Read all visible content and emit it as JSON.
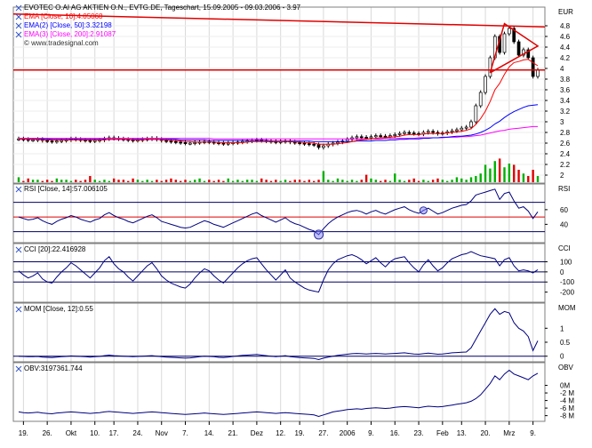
{
  "chart_data": {
    "type": "line",
    "x_tick_labels": [
      "19.",
      "26.",
      "Okt",
      "10.",
      "17.",
      "24.",
      "Nov",
      "7.",
      "14.",
      "21.",
      "Dez",
      "12.",
      "19.",
      "27.",
      "2006",
      "9.",
      "16.",
      "23.",
      "Feb",
      "13.",
      "20.",
      "Mrz",
      "9."
    ],
    "panels": [
      {
        "id": "price",
        "type": "candlestick",
        "title": "EVOTEC O.AI AG AKTIEN O.N., EVTG.DE, Tageschart, 15.09.2005 - 09.03.2006 - 3.97",
        "unit_label": "EUR",
        "ylim": [
          1.85,
          5.15
        ],
        "yticks": [
          2,
          2.2,
          2.4,
          2.6,
          2.8,
          3,
          3.2,
          3.4,
          3.6,
          3.8,
          4,
          4.2,
          4.4,
          4.6,
          4.8
        ],
        "watermark": "© www.tradesignal.com",
        "legend": [
          {
            "label": "EMA [Close, 10]:4.05068",
            "color": "#ff0000"
          },
          {
            "label": "EMA(2) [Close, 50]:3.32198",
            "color": "#0000ff"
          },
          {
            "label": "EMA(3) [Close, 200]:2.91087",
            "color": "#ff00ff"
          }
        ],
        "close": [
          2.68,
          2.67,
          2.66,
          2.66,
          2.67,
          2.65,
          2.64,
          2.63,
          2.64,
          2.65,
          2.66,
          2.68,
          2.67,
          2.66,
          2.65,
          2.64,
          2.65,
          2.66,
          2.68,
          2.7,
          2.69,
          2.68,
          2.67,
          2.66,
          2.65,
          2.66,
          2.67,
          2.68,
          2.69,
          2.67,
          2.65,
          2.64,
          2.63,
          2.62,
          2.61,
          2.6,
          2.6,
          2.61,
          2.62,
          2.63,
          2.62,
          2.61,
          2.6,
          2.59,
          2.6,
          2.61,
          2.62,
          2.63,
          2.64,
          2.65,
          2.66,
          2.65,
          2.64,
          2.63,
          2.62,
          2.63,
          2.64,
          2.62,
          2.61,
          2.6,
          2.59,
          2.58,
          2.57,
          2.52,
          2.55,
          2.58,
          2.6,
          2.62,
          2.64,
          2.67,
          2.7,
          2.72,
          2.71,
          2.7,
          2.72,
          2.74,
          2.73,
          2.72,
          2.74,
          2.76,
          2.78,
          2.8,
          2.79,
          2.78,
          2.77,
          2.8,
          2.82,
          2.8,
          2.78,
          2.79,
          2.81,
          2.83,
          2.85,
          2.88,
          2.9,
          3.0,
          3.3,
          3.55,
          3.85,
          4.2,
          4.6,
          4.3,
          4.65,
          4.75,
          4.5,
          4.25,
          4.35,
          4.2,
          3.85,
          3.97
        ],
        "volume": [
          0.2,
          0.05,
          0.15,
          0.1,
          0.1,
          0.05,
          0.1,
          0.05,
          0.15,
          0.1,
          0.1,
          0.05,
          0.1,
          0.05,
          0.1,
          0.25,
          0.1,
          0.05,
          0.1,
          0.05,
          0.15,
          0.1,
          0.1,
          0.05,
          0.15,
          0.1,
          0.05,
          0.1,
          0.05,
          0.1,
          0.05,
          0.1,
          0.15,
          0.1,
          0.05,
          0.1,
          0.05,
          0.1,
          0.15,
          0.05,
          0.1,
          0.05,
          0.1,
          0.05,
          0.15,
          0.05,
          0.1,
          0.05,
          0.1,
          0.1,
          0.05,
          0.15,
          0.1,
          0.05,
          0.1,
          0.05,
          0.1,
          0.05,
          0.1,
          0.1,
          0.05,
          0.1,
          0.05,
          0.1,
          0.45,
          0.1,
          0.05,
          0.15,
          0.1,
          0.05,
          0.1,
          0.05,
          0.1,
          0.3,
          0.15,
          0.1,
          0.05,
          0.1,
          0.05,
          0.35,
          0.1,
          0.05,
          0.1,
          0.15,
          0.05,
          0.1,
          0.05,
          0.1,
          0.15,
          0.1,
          0.05,
          0.1,
          0.2,
          0.15,
          0.1,
          0.2,
          0.25,
          0.35,
          0.7,
          0.55,
          0.85,
          0.95,
          0.6,
          0.75,
          0.7,
          0.5,
          0.35,
          0.25,
          0.5,
          0.25
        ],
        "ema10": [
          2.68,
          2.68,
          2.67,
          2.67,
          2.67,
          2.66,
          2.66,
          2.66,
          2.66,
          2.66,
          2.66,
          2.66,
          2.66,
          2.66,
          2.66,
          2.66,
          2.66,
          2.66,
          2.66,
          2.67,
          2.67,
          2.67,
          2.67,
          2.67,
          2.66,
          2.66,
          2.66,
          2.67,
          2.67,
          2.67,
          2.66,
          2.66,
          2.65,
          2.65,
          2.64,
          2.63,
          2.63,
          2.62,
          2.62,
          2.62,
          2.62,
          2.62,
          2.61,
          2.61,
          2.61,
          2.61,
          2.61,
          2.61,
          2.62,
          2.63,
          2.63,
          2.63,
          2.63,
          2.63,
          2.63,
          2.63,
          2.63,
          2.63,
          2.62,
          2.62,
          2.61,
          2.61,
          2.6,
          2.58,
          2.58,
          2.58,
          2.58,
          2.59,
          2.6,
          2.61,
          2.63,
          2.65,
          2.66,
          2.67,
          2.68,
          2.69,
          2.7,
          2.7,
          2.71,
          2.72,
          2.73,
          2.75,
          2.76,
          2.76,
          2.76,
          2.77,
          2.78,
          2.78,
          2.78,
          2.78,
          2.79,
          2.8,
          2.81,
          2.82,
          2.84,
          2.87,
          2.95,
          3.06,
          3.2,
          3.38,
          3.6,
          3.72,
          3.89,
          4.03,
          4.11,
          4.13,
          4.16,
          4.17,
          4.11,
          4.05
        ],
        "ema50": [
          2.68,
          2.68,
          2.68,
          2.68,
          2.68,
          2.68,
          2.68,
          2.67,
          2.67,
          2.67,
          2.67,
          2.67,
          2.67,
          2.67,
          2.67,
          2.67,
          2.67,
          2.67,
          2.67,
          2.67,
          2.67,
          2.67,
          2.67,
          2.67,
          2.67,
          2.67,
          2.67,
          2.67,
          2.67,
          2.67,
          2.67,
          2.67,
          2.67,
          2.67,
          2.66,
          2.66,
          2.66,
          2.66,
          2.66,
          2.66,
          2.65,
          2.65,
          2.65,
          2.65,
          2.65,
          2.65,
          2.65,
          2.65,
          2.65,
          2.65,
          2.65,
          2.65,
          2.65,
          2.64,
          2.64,
          2.64,
          2.64,
          2.64,
          2.64,
          2.64,
          2.64,
          2.64,
          2.63,
          2.63,
          2.63,
          2.63,
          2.63,
          2.63,
          2.63,
          2.63,
          2.63,
          2.64,
          2.64,
          2.64,
          2.64,
          2.65,
          2.65,
          2.65,
          2.66,
          2.66,
          2.67,
          2.67,
          2.68,
          2.68,
          2.68,
          2.69,
          2.69,
          2.7,
          2.7,
          2.71,
          2.71,
          2.72,
          2.73,
          2.73,
          2.74,
          2.75,
          2.77,
          2.8,
          2.84,
          2.89,
          2.96,
          3.01,
          3.08,
          3.14,
          3.19,
          3.23,
          3.27,
          3.3,
          3.31,
          3.32
        ],
        "ema200": [
          2.69,
          2.69,
          2.69,
          2.69,
          2.69,
          2.69,
          2.69,
          2.69,
          2.69,
          2.69,
          2.69,
          2.69,
          2.69,
          2.69,
          2.69,
          2.69,
          2.69,
          2.69,
          2.69,
          2.69,
          2.69,
          2.69,
          2.69,
          2.69,
          2.69,
          2.69,
          2.69,
          2.69,
          2.69,
          2.69,
          2.69,
          2.69,
          2.69,
          2.69,
          2.69,
          2.69,
          2.69,
          2.69,
          2.69,
          2.69,
          2.69,
          2.68,
          2.68,
          2.68,
          2.68,
          2.68,
          2.68,
          2.68,
          2.68,
          2.68,
          2.68,
          2.68,
          2.68,
          2.68,
          2.68,
          2.68,
          2.68,
          2.68,
          2.68,
          2.68,
          2.68,
          2.68,
          2.68,
          2.68,
          2.68,
          2.68,
          2.68,
          2.68,
          2.68,
          2.68,
          2.68,
          2.68,
          2.68,
          2.68,
          2.68,
          2.68,
          2.68,
          2.69,
          2.69,
          2.69,
          2.69,
          2.69,
          2.69,
          2.69,
          2.7,
          2.7,
          2.7,
          2.7,
          2.7,
          2.7,
          2.71,
          2.71,
          2.71,
          2.72,
          2.72,
          2.73,
          2.74,
          2.75,
          2.77,
          2.79,
          2.81,
          2.83,
          2.84,
          2.86,
          2.87,
          2.88,
          2.89,
          2.9,
          2.91,
          2.91
        ]
      },
      {
        "id": "rsi",
        "type": "line",
        "title": "RSI [Close, 14]:57.006105",
        "unit_label": "RSI",
        "ylim": [
          15,
          95
        ],
        "yticks": [
          40,
          60
        ],
        "levels": [
          30,
          50,
          70
        ],
        "values": [
          50,
          48,
          46,
          47,
          49,
          45,
          42,
          40,
          44,
          47,
          49,
          52,
          50,
          47,
          45,
          43,
          46,
          48,
          53,
          56,
          52,
          49,
          47,
          44,
          42,
          45,
          48,
          51,
          53,
          49,
          44,
          42,
          40,
          38,
          36,
          35,
          36,
          39,
          42,
          45,
          43,
          40,
          38,
          36,
          39,
          42,
          45,
          48,
          51,
          54,
          56,
          52,
          49,
          46,
          43,
          46,
          49,
          44,
          41,
          39,
          36,
          33,
          31,
          26,
          34,
          41,
          46,
          50,
          53,
          56,
          58,
          59,
          57,
          54,
          57,
          59,
          56,
          54,
          57,
          60,
          62,
          64,
          60,
          57,
          55,
          59,
          62,
          58,
          54,
          56,
          59,
          62,
          64,
          66,
          67,
          72,
          80,
          82,
          84,
          86,
          88,
          74,
          82,
          84,
          72,
          62,
          64,
          58,
          48,
          57
        ]
      },
      {
        "id": "cci",
        "type": "line",
        "title": "CCI [20]:22.416928",
        "unit_label": "CCI",
        "ylim": [
          -300,
          280
        ],
        "yticks": [
          100,
          0,
          -100,
          -200
        ],
        "levels": [
          100,
          0,
          -100
        ],
        "values": [
          10,
          -30,
          -60,
          -40,
          -10,
          -70,
          -100,
          -110,
          -50,
          0,
          40,
          90,
          60,
          20,
          -20,
          -60,
          -10,
          40,
          110,
          150,
          80,
          30,
          0,
          -50,
          -90,
          -40,
          10,
          60,
          90,
          30,
          -40,
          -80,
          -110,
          -130,
          -150,
          -160,
          -120,
          -60,
          -10,
          30,
          10,
          -40,
          -80,
          -110,
          -60,
          -10,
          40,
          80,
          110,
          130,
          140,
          80,
          20,
          -30,
          -80,
          -30,
          20,
          -60,
          -100,
          -130,
          -160,
          -180,
          -190,
          -200,
          -80,
          20,
          80,
          120,
          140,
          160,
          170,
          150,
          120,
          80,
          110,
          140,
          90,
          50,
          100,
          130,
          140,
          150,
          90,
          40,
          0,
          70,
          120,
          60,
          10,
          40,
          90,
          130,
          150,
          170,
          180,
          200,
          180,
          160,
          150,
          140,
          130,
          60,
          120,
          140,
          60,
          10,
          20,
          10,
          -10,
          22
        ]
      },
      {
        "id": "mom",
        "type": "line",
        "title": "MOM [Close, 12]:0.55",
        "unit_label": "MOM",
        "ylim": [
          -0.2,
          1.9
        ],
        "yticks": [
          1,
          0.5,
          0
        ],
        "levels": [
          0
        ],
        "values": [
          0.0,
          -0.01,
          -0.02,
          -0.02,
          -0.01,
          -0.03,
          -0.04,
          -0.05,
          -0.03,
          -0.02,
          -0.01,
          0.01,
          0.0,
          -0.01,
          -0.02,
          -0.03,
          -0.02,
          -0.01,
          0.02,
          0.04,
          0.02,
          0.01,
          0.0,
          -0.01,
          -0.02,
          -0.01,
          0.0,
          0.01,
          0.02,
          0.0,
          -0.02,
          -0.03,
          -0.04,
          -0.05,
          -0.06,
          -0.07,
          -0.06,
          -0.04,
          -0.02,
          0.0,
          -0.01,
          -0.02,
          -0.04,
          -0.05,
          -0.03,
          -0.01,
          0.01,
          0.03,
          0.04,
          0.05,
          0.06,
          0.04,
          0.02,
          0.0,
          -0.02,
          0.0,
          0.02,
          -0.02,
          -0.03,
          -0.05,
          -0.06,
          -0.07,
          -0.08,
          -0.12,
          -0.07,
          -0.03,
          0.0,
          0.03,
          0.05,
          0.07,
          0.09,
          0.1,
          0.09,
          0.08,
          0.09,
          0.1,
          0.09,
          0.08,
          0.09,
          0.1,
          0.11,
          0.12,
          0.1,
          0.08,
          0.07,
          0.09,
          0.11,
          0.09,
          0.07,
          0.08,
          0.1,
          0.12,
          0.13,
          0.14,
          0.15,
          0.3,
          0.6,
          0.9,
          1.2,
          1.5,
          1.7,
          1.5,
          1.6,
          1.55,
          1.2,
          1.0,
          0.9,
          0.7,
          0.2,
          0.55
        ]
      },
      {
        "id": "obv",
        "type": "line",
        "title": "OBV:3197361.744",
        "unit_label": "OBV",
        "ylim": [
          -9.5,
          6
        ],
        "yticks": [
          0,
          -2,
          -4,
          -6,
          -8
        ],
        "ytick_labels": [
          "0M",
          "-2 M",
          "-4 M",
          "-6 M",
          "-8 M"
        ],
        "values": [
          -7.0,
          -7.2,
          -7.3,
          -7.2,
          -7.1,
          -7.3,
          -7.4,
          -7.5,
          -7.3,
          -7.2,
          -7.1,
          -7.0,
          -7.1,
          -7.2,
          -7.3,
          -7.4,
          -7.3,
          -7.2,
          -7.0,
          -6.9,
          -7.0,
          -7.1,
          -7.2,
          -7.3,
          -7.4,
          -7.3,
          -7.2,
          -7.1,
          -7.0,
          -7.1,
          -7.2,
          -7.3,
          -7.4,
          -7.5,
          -7.6,
          -7.7,
          -7.6,
          -7.5,
          -7.4,
          -7.3,
          -7.4,
          -7.5,
          -7.6,
          -7.7,
          -7.6,
          -7.5,
          -7.4,
          -7.3,
          -7.2,
          -7.1,
          -7.0,
          -7.1,
          -7.2,
          -7.3,
          -7.4,
          -7.3,
          -7.2,
          -7.3,
          -7.4,
          -7.5,
          -7.6,
          -7.7,
          -7.8,
          -8.2,
          -7.8,
          -7.4,
          -7.0,
          -6.8,
          -6.6,
          -6.4,
          -6.3,
          -6.2,
          -6.3,
          -6.1,
          -6.0,
          -5.9,
          -6.0,
          -6.1,
          -6.0,
          -5.8,
          -5.7,
          -5.6,
          -5.7,
          -5.8,
          -5.9,
          -5.7,
          -5.5,
          -5.6,
          -5.7,
          -5.6,
          -5.4,
          -5.2,
          -5.0,
          -4.8,
          -4.6,
          -4.2,
          -3.5,
          -2.5,
          -1.0,
          0.5,
          2.5,
          1.5,
          3.0,
          4.0,
          3.0,
          2.5,
          2.0,
          1.5,
          2.5,
          3.2
        ]
      }
    ]
  }
}
